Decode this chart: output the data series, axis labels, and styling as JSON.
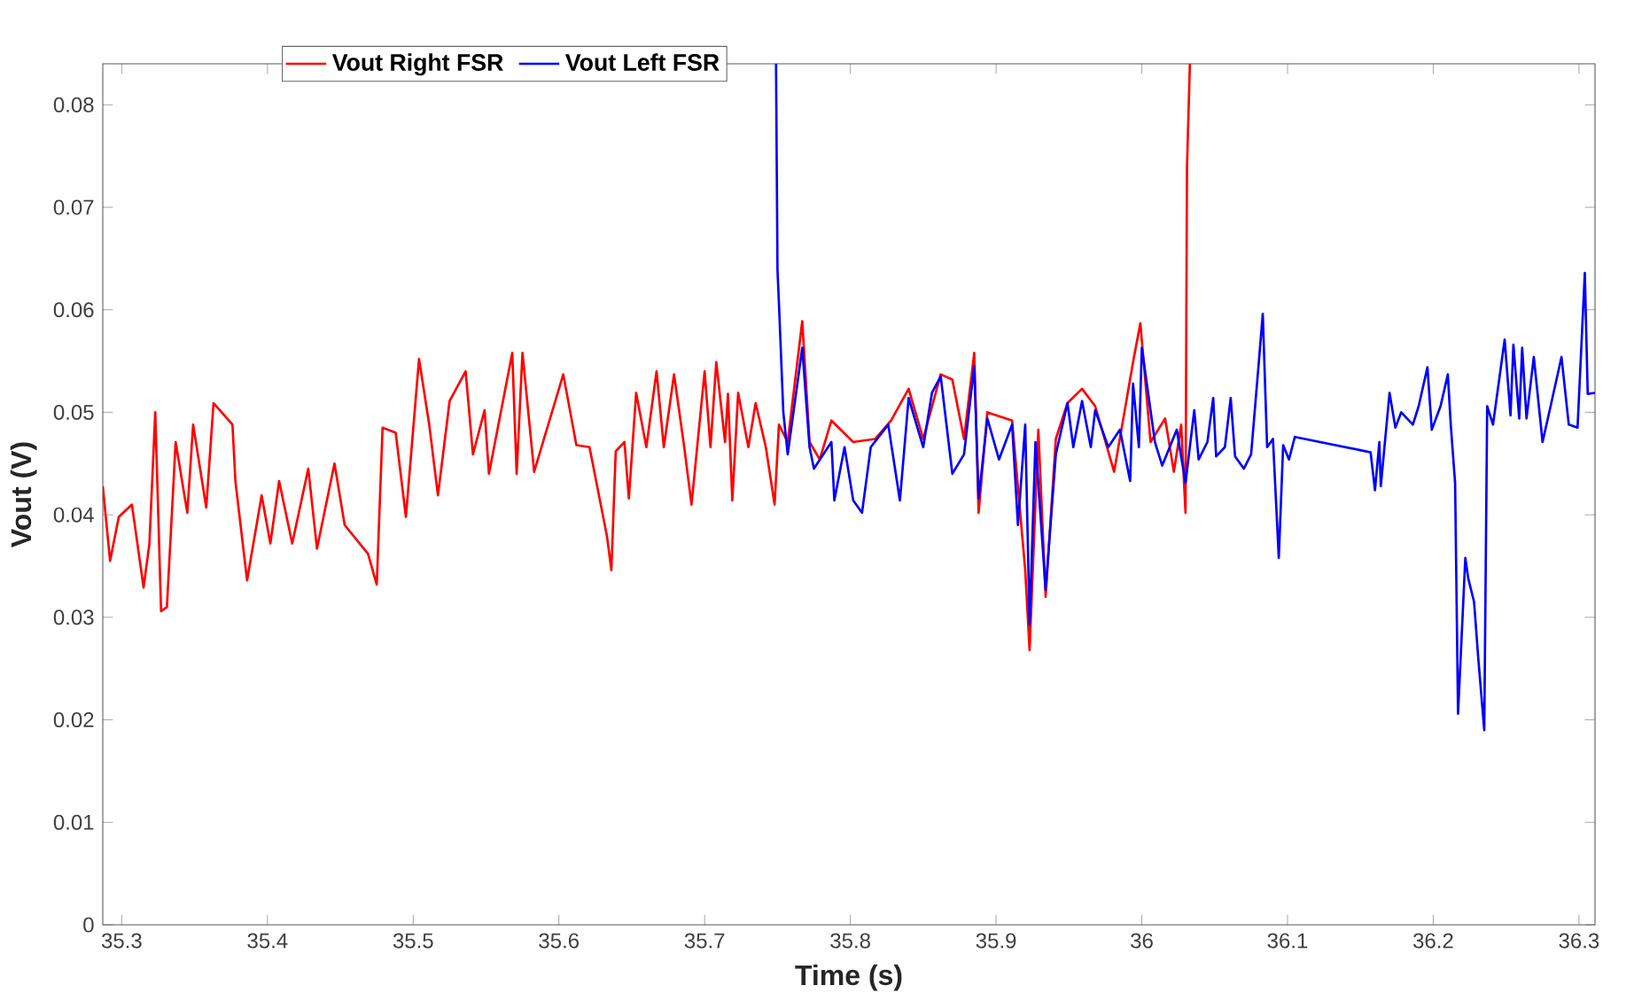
{
  "chart_data": {
    "type": "line",
    "xlabel": "Time (s)",
    "ylabel": "Vout (V)",
    "xlim": [
      35.287,
      36.311
    ],
    "ylim": [
      0,
      0.084
    ],
    "xticks": [
      35.3,
      35.4,
      35.5,
      35.6,
      35.7,
      35.8,
      35.9,
      36,
      36.1,
      36.2,
      36.3
    ],
    "yticks": [
      0,
      0.01,
      0.02,
      0.03,
      0.04,
      0.05,
      0.06,
      0.07,
      0.08
    ],
    "grid": false,
    "legend": "top",
    "series": [
      {
        "name": "Vout Right FSR",
        "color": "#ff0000",
        "x": [
          35.287,
          35.292,
          35.298,
          35.307,
          35.315,
          35.319,
          35.323,
          35.327,
          35.331,
          35.337,
          35.345,
          35.349,
          35.358,
          35.363,
          35.376,
          35.378,
          35.386,
          35.396,
          35.402,
          35.408,
          35.417,
          35.428,
          35.434,
          35.446,
          35.453,
          35.469,
          35.475,
          35.479,
          35.488,
          35.495,
          35.504,
          35.511,
          35.517,
          35.525,
          35.536,
          35.541,
          35.549,
          35.552,
          35.568,
          35.571,
          35.575,
          35.583,
          35.603,
          35.612,
          35.621,
          35.633,
          35.636,
          35.639,
          35.645,
          35.648,
          35.653,
          35.66,
          35.667,
          35.672,
          35.679,
          35.686,
          35.691,
          35.7,
          35.704,
          35.708,
          35.714,
          35.716,
          35.719,
          35.723,
          35.73,
          35.735,
          35.742,
          35.748,
          35.751,
          35.757,
          35.767,
          35.772,
          35.779,
          35.787,
          35.802,
          35.817,
          35.828,
          35.84,
          35.85,
          35.862,
          35.87,
          35.878,
          35.885,
          35.888,
          35.894,
          35.911,
          35.92,
          35.923,
          35.929,
          35.934,
          35.941,
          35.949,
          35.959,
          35.968,
          35.981,
          35.994,
          35.999,
          36.006,
          36.016,
          36.022,
          36.027,
          36.03,
          36.031,
          36.033
        ],
        "values": [
          0.0428,
          0.0355,
          0.0398,
          0.041,
          0.0329,
          0.0372,
          0.05,
          0.0306,
          0.031,
          0.0471,
          0.0402,
          0.0488,
          0.0407,
          0.0509,
          0.0488,
          0.0433,
          0.0336,
          0.0419,
          0.0372,
          0.0433,
          0.0372,
          0.0445,
          0.0367,
          0.045,
          0.039,
          0.0362,
          0.0332,
          0.0485,
          0.048,
          0.0398,
          0.0552,
          0.0488,
          0.0419,
          0.0511,
          0.054,
          0.0459,
          0.0502,
          0.044,
          0.0558,
          0.044,
          0.0558,
          0.0442,
          0.0537,
          0.0468,
          0.0466,
          0.0379,
          0.0346,
          0.0462,
          0.0471,
          0.0416,
          0.0519,
          0.0466,
          0.054,
          0.0466,
          0.0537,
          0.0466,
          0.041,
          0.054,
          0.0466,
          0.0549,
          0.0471,
          0.0518,
          0.0414,
          0.0519,
          0.0466,
          0.0509,
          0.0466,
          0.041,
          0.0488,
          0.0471,
          0.0589,
          0.0471,
          0.0454,
          0.0492,
          0.0471,
          0.0474,
          0.0492,
          0.0523,
          0.0474,
          0.0537,
          0.0532,
          0.0474,
          0.0558,
          0.0402,
          0.05,
          0.0492,
          0.0346,
          0.0268,
          0.0483,
          0.032,
          0.0474,
          0.0509,
          0.0523,
          0.0506,
          0.0442,
          0.0549,
          0.0587,
          0.0471,
          0.0494,
          0.0442,
          0.0488,
          0.0402,
          0.0739,
          0.084
        ]
      },
      {
        "name": "Vout Left FSR",
        "color": "#0000ff",
        "x": [
          35.749,
          35.75,
          35.751,
          35.754,
          35.757,
          35.767,
          35.772,
          35.775,
          35.787,
          35.789,
          35.796,
          35.802,
          35.808,
          35.814,
          35.826,
          35.834,
          35.84,
          35.85,
          35.856,
          35.862,
          35.87,
          35.878,
          35.885,
          35.888,
          35.894,
          35.902,
          35.911,
          35.915,
          35.92,
          35.923,
          35.927,
          35.934,
          35.941,
          35.949,
          35.953,
          35.959,
          35.965,
          35.968,
          35.977,
          35.985,
          35.992,
          35.994,
          35.998,
          36.0,
          36.009,
          36.014,
          36.024,
          36.03,
          36.036,
          36.039,
          36.045,
          36.049,
          36.051,
          36.057,
          36.061,
          36.064,
          36.07,
          36.075,
          36.081,
          36.083,
          36.086,
          36.09,
          36.094,
          36.097,
          36.101,
          36.105,
          36.157,
          36.16,
          36.163,
          36.164,
          36.17,
          36.174,
          36.178,
          36.186,
          36.19,
          36.196,
          36.199,
          36.205,
          36.21,
          36.212,
          36.215,
          36.217,
          36.222,
          36.224,
          36.228,
          36.231,
          36.235,
          36.237,
          36.241,
          36.249,
          36.253,
          36.255,
          36.259,
          36.261,
          36.264,
          36.269,
          36.275,
          36.281,
          36.288,
          36.293,
          36.299,
          36.304,
          36.306,
          36.311
        ],
        "values": [
          0.084,
          0.0639,
          0.0606,
          0.05,
          0.0459,
          0.0563,
          0.0466,
          0.0445,
          0.0471,
          0.0414,
          0.0466,
          0.0414,
          0.0402,
          0.0466,
          0.0488,
          0.0414,
          0.0514,
          0.0466,
          0.0519,
          0.0535,
          0.044,
          0.0459,
          0.0545,
          0.0416,
          0.0494,
          0.0454,
          0.0488,
          0.039,
          0.0488,
          0.0293,
          0.0471,
          0.0327,
          0.0459,
          0.0509,
          0.0466,
          0.0511,
          0.0466,
          0.0502,
          0.0466,
          0.0483,
          0.0433,
          0.0528,
          0.0466,
          0.0563,
          0.0471,
          0.0448,
          0.0483,
          0.0431,
          0.0502,
          0.0454,
          0.0471,
          0.0514,
          0.0457,
          0.0466,
          0.0514,
          0.0457,
          0.0445,
          0.0459,
          0.0561,
          0.0596,
          0.0466,
          0.0474,
          0.0358,
          0.0468,
          0.0454,
          0.0476,
          0.0461,
          0.0424,
          0.0471,
          0.0428,
          0.0519,
          0.0485,
          0.05,
          0.0488,
          0.0506,
          0.0544,
          0.0483,
          0.0506,
          0.0537,
          0.0488,
          0.0431,
          0.0206,
          0.0358,
          0.0338,
          0.0315,
          0.0258,
          0.019,
          0.0506,
          0.0488,
          0.0571,
          0.0497,
          0.0566,
          0.0494,
          0.0563,
          0.0494,
          0.0554,
          0.0471,
          0.0509,
          0.0554,
          0.0488,
          0.0485,
          0.0636,
          0.0518,
          0.0519
        ]
      }
    ]
  }
}
